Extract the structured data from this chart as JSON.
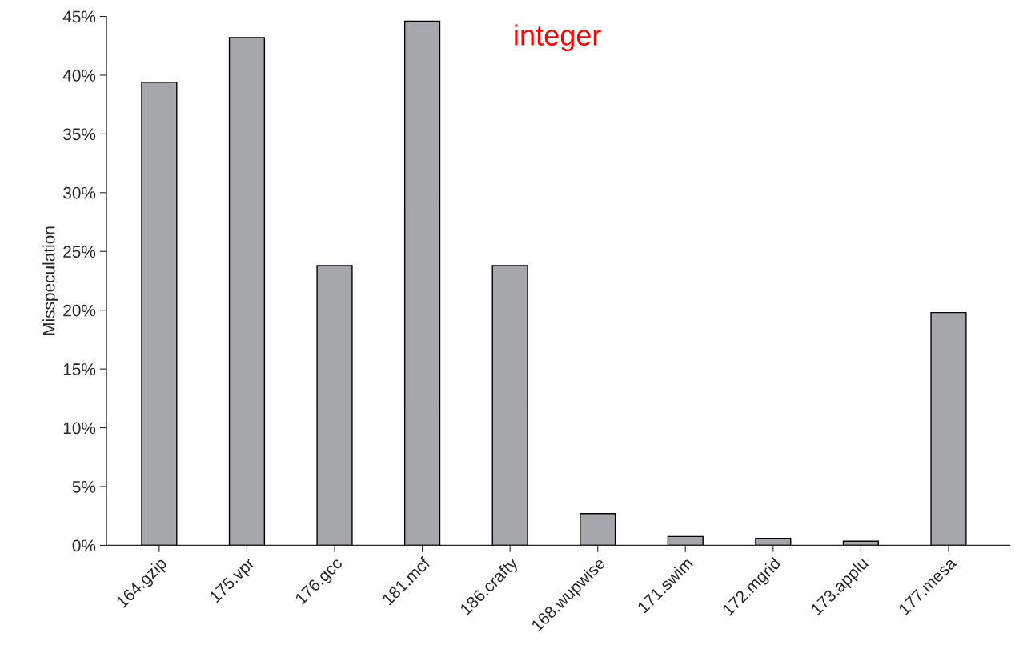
{
  "chart_data": {
    "type": "bar",
    "ylabel": "Misspeculation",
    "categories": [
      "164.gzip",
      "175.vpr",
      "176.gcc",
      "181.mcf",
      "186.crafty",
      "168.wupwise",
      "171.swim",
      "172.mgrid",
      "173.applu",
      "177.mesa"
    ],
    "values": [
      39.4,
      43.2,
      23.8,
      44.6,
      23.8,
      2.7,
      0.75,
      0.6,
      0.35,
      19.8
    ],
    "color": "#a6a7ab",
    "ylim": [
      0,
      45
    ],
    "yticks": [
      {
        "value": 0,
        "label": "0%"
      },
      {
        "value": 5,
        "label": "5%"
      },
      {
        "value": 10,
        "label": "10%"
      },
      {
        "value": 15,
        "label": "15%"
      },
      {
        "value": 20,
        "label": "20%"
      },
      {
        "value": 25,
        "label": "25%"
      },
      {
        "value": 30,
        "label": "30%"
      },
      {
        "value": 35,
        "label": "35%"
      },
      {
        "value": 40,
        "label": "40%"
      },
      {
        "value": 45,
        "label": "45%"
      }
    ],
    "grid": false,
    "annotations": [
      "integer"
    ]
  }
}
